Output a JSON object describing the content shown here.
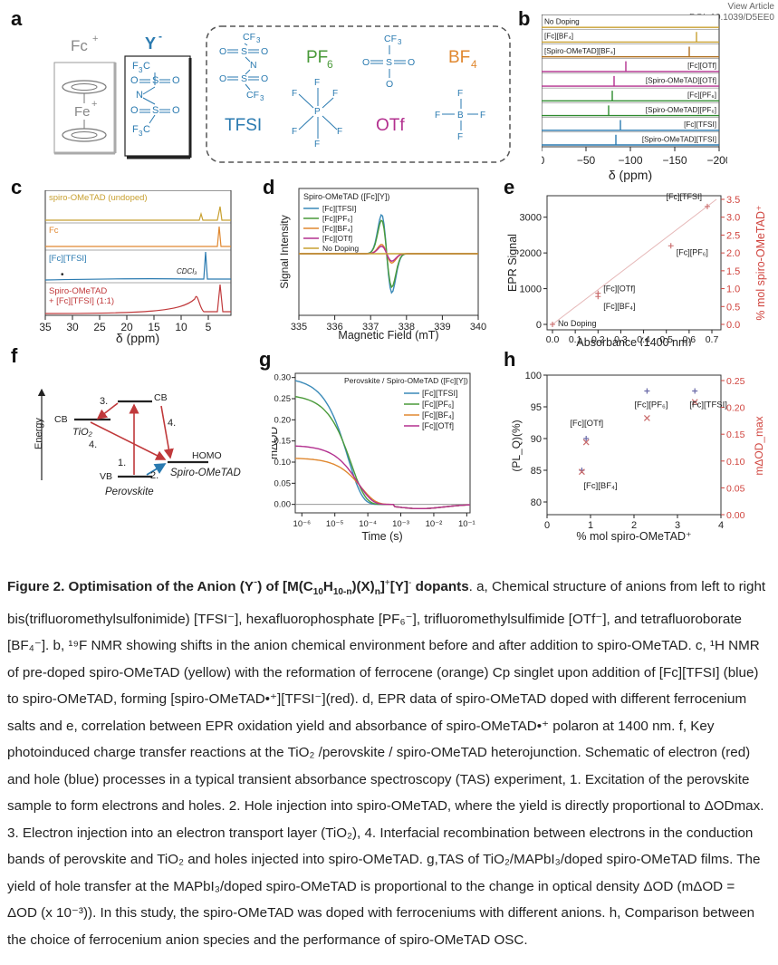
{
  "header": {
    "view_article": "View Article",
    "doi": "DOI: 10.1039/D5EE0"
  },
  "panels": {
    "a": "a",
    "b": "b",
    "c": "c",
    "d": "d",
    "e": "e",
    "f": "f",
    "g": "g",
    "h": "h"
  },
  "panel_a": {
    "fc": "Fc",
    "fc_sup": "+",
    "fe": "Fe",
    "fe_sup": "+",
    "y": "Y",
    "y_sup": "-",
    "tfsi": "TFSI",
    "pf6": "PF",
    "pf6_sub": "6",
    "otf": "OTf",
    "bf4": "BF",
    "bf4_sub": "4",
    "cf3": "CF",
    "cf3_sub": "3",
    "f3c": "F",
    "f3c_sub": "3",
    "f3c_c": "C",
    "o": "O",
    "s": "S",
    "n": "N",
    "p": "P",
    "b": "B",
    "f": "F"
  },
  "panel_b": {
    "xlabel": "δ (ppm)",
    "ticks": [
      "0",
      "−50",
      "−100",
      "−150",
      "−200"
    ],
    "traces": [
      {
        "label": "No Doping",
        "color": "#c8a030"
      },
      {
        "label": "[Fc][BF₄]",
        "color": "#c8a030"
      },
      {
        "label": "[Spiro-OMeTAD][BF₄]",
        "color": "#b07020"
      },
      {
        "label": "[Fc][OTf]",
        "color": "#b3308f"
      },
      {
        "label": "[Spiro-OMeTAD][OTf]",
        "color": "#b3308f"
      },
      {
        "label": "[Fc][PF₆]",
        "color": "#2e8b2e"
      },
      {
        "label": "[Spiro-OMeTAD][PF₆]",
        "color": "#2e8b2e"
      },
      {
        "label": "[Fc][TFSI]",
        "color": "#2a7ab0"
      },
      {
        "label": "[Spiro-OMeTAD][TFSI]",
        "color": "#2a7ab0"
      }
    ]
  },
  "panel_c": {
    "labels": [
      "spiro-OMeTAD (undoped)",
      "Fc",
      "[Fc][TFSI]",
      "Spiro-OMeTAD",
      "+ [Fc][TFSI] (1:1)"
    ],
    "cdcl3": "CDCl₃",
    "xlabel": "δ (ppm)",
    "ticks": [
      "35",
      "30",
      "25",
      "20",
      "15",
      "10",
      "5"
    ]
  },
  "panel_d": {
    "legend_title": "Spiro-OMeTAD ([Fc][Y])",
    "legend": [
      "[Fc][TFSI]",
      "[Fc][PF₆]",
      "[Fc][BF₄]",
      "[Fc][OTf]",
      "No Doping"
    ],
    "ylabel": "Signal Intensity",
    "xlabel": "Magnetic Field (mT)",
    "ticks": [
      "335",
      "336",
      "337",
      "338",
      "339",
      "340"
    ]
  },
  "panel_e": {
    "ylabel": "EPR Signal",
    "y2label": "% mol spiro-OMeTAD⁺",
    "xlabel": "Absorbance (1400 nm)",
    "xticks": [
      "0.0",
      "0.1",
      "0.2",
      "0.3",
      "0.4",
      "0.5",
      "0.6",
      "0.7"
    ],
    "yticks": [
      "0",
      "1000",
      "2000",
      "3000"
    ],
    "y2ticks": [
      "0.0",
      "0.5",
      "1.0",
      "1.5",
      "2.0",
      "2.5",
      "3.0",
      "3.5"
    ],
    "point_labels": [
      "[Fc][TFSI]",
      "[Fc][PF₆]",
      "[Fc][OTf]",
      "[Fc][BF₄]",
      "No Doping"
    ]
  },
  "panel_f": {
    "energy": "Energy",
    "cb": "CB",
    "cb2": "CB",
    "tio2": "TiO₂",
    "vb": "VB",
    "perovskite": "Perovskite",
    "homo": "HOMO",
    "spiro": "Spiro-OMeTAD",
    "steps": [
      "1.",
      "2.",
      "3.",
      "4.",
      "4."
    ]
  },
  "panel_g": {
    "legend_title": "Perovskite / Spiro-OMeTAD ([Fc][Y])",
    "legend": [
      "[Fc][TFSI]",
      "[Fc][PF₆]",
      "[Fc][BF₄]",
      "[Fc][OTf]"
    ],
    "ylabel": "mΔOD",
    "xlabel": "Time (s)",
    "yticks": [
      "0.00",
      "0.05",
      "0.10",
      "0.15",
      "0.20",
      "0.25",
      "0.30"
    ],
    "xticks": [
      "10⁻⁶",
      "10⁻⁵",
      "10⁻⁴",
      "10⁻³",
      "10⁻²",
      "10⁻¹"
    ]
  },
  "panel_h": {
    "ylabel": "(PL_Q)(%)",
    "y2label": "mΔOD_max",
    "xlabel": "% mol spiro-OMeTAD⁺",
    "yticks": [
      "80",
      "85",
      "90",
      "95",
      "100"
    ],
    "y2ticks": [
      "0.00",
      "0.05",
      "0.10",
      "0.15",
      "0.20",
      "0.25"
    ],
    "xticks": [
      "0",
      "1",
      "2",
      "3",
      "4"
    ],
    "point_labels": [
      "[Fc][OTf]",
      "[Fc][PF₆]",
      "[Fc][TFSI]",
      "[Fc][BF₄]"
    ]
  },
  "chart_data": [
    {
      "type": "scatter",
      "panel": "e",
      "xlabel": "Absorbance (1400 nm)",
      "ylabel": "EPR Signal",
      "xlim": [
        0.0,
        0.75
      ],
      "ylim": [
        0,
        3500
      ],
      "points": [
        {
          "label": "No Doping",
          "x": 0.0,
          "y": 0
        },
        {
          "label": "[Fc][BF₄]",
          "x": 0.2,
          "y": 780
        },
        {
          "label": "[Fc][OTf]",
          "x": 0.2,
          "y": 870
        },
        {
          "label": "[Fc][PF₆]",
          "x": 0.52,
          "y": 2200
        },
        {
          "label": "[Fc][TFSI]",
          "x": 0.68,
          "y": 3300
        }
      ]
    },
    {
      "type": "scatter",
      "panel": "h",
      "xlabel": "% mol spiro-OMeTAD⁺",
      "xlim": [
        0,
        4
      ],
      "series": [
        {
          "name": "(PL_Q)(%)",
          "points": [
            {
              "label": "[Fc][BF₄]",
              "x": 0.8,
              "y": 85
            },
            {
              "label": "[Fc][OTf]",
              "x": 0.9,
              "y": 90
            },
            {
              "label": "[Fc][PF₆]",
              "x": 2.3,
              "y": 97.5
            },
            {
              "label": "[Fc][TFSI]",
              "x": 3.4,
              "y": 97.5
            }
          ]
        },
        {
          "name": "mΔOD_max",
          "points": [
            {
              "label": "[Fc][BF₄]",
              "x": 0.8,
              "y": 0.08
            },
            {
              "label": "[Fc][OTf]",
              "x": 0.9,
              "y": 0.135
            },
            {
              "label": "[Fc][PF₆]",
              "x": 2.3,
              "y": 0.18
            },
            {
              "label": "[Fc][TFSI]",
              "x": 3.4,
              "y": 0.21
            }
          ]
        }
      ]
    }
  ],
  "caption": {
    "fig": "Figure 2.",
    "title_a": " Optimisation of the Anion (Y",
    "title_b": ") of [M(C",
    "title_c": "H",
    "title_d": ")(X)",
    "title_e": "]",
    "title_f": "[Y]",
    "title_g": " dopants",
    "body": ". a, Chemical structure of anions from left to right bis(trifluoromethylsulfonimide) [TFSI⁻], hexafluorophosphate [PF₆⁻], trifluoromethylsulfimide [OTf⁻], and tetrafluoroborate [BF₄⁻]. b, ¹⁹F NMR showing shifts in the anion chemical environment before and after addition to spiro-OMeTAD. c, ¹H NMR of pre-doped spiro-OMeTAD (yellow) with the reformation of ferrocene (orange) Cp singlet upon addition of [Fc][TFSI] (blue) to spiro-OMeTAD, forming [spiro-OMeTAD•⁺][TFSI⁻](red). d, EPR data of spiro-OMeTAD doped with different ferrocenium salts and e, correlation between EPR oxidation yield and absorbance of spiro-OMeTAD•⁺ polaron at 1400 nm. f, Key photoinduced charge transfer reactions at the TiO₂ /perovskite / spiro-OMeTAD heterojunction. Schematic of electron (red) and hole (blue) processes in a typical transient absorbance spectroscopy (TAS) experiment, 1. Excitation of the perovskite sample to form electrons and holes. 2. Hole injection into spiro-OMeTAD, where the yield is directly proportional to ΔODmax. 3. Electron injection into an electron transport layer (TiO₂), 4. Interfacial recombination between electrons in the conduction bands of perovskite and TiO₂ and holes injected into spiro-OMeTAD. g,TAS of TiO₂/MAPbI₃/doped spiro-OMeTAD films. The yield of hole transfer at the MAPbI₃/doped spiro-OMeTAD is proportional to the change in optical density ΔOD (mΔOD = ΔOD (x 10⁻³)). In this study, the spiro-OMeTAD was doped with ferroceniums with different anions. h, Comparison between the choice of ferrocenium anion species and the performance of spiro-OMeTAD OSC."
  }
}
